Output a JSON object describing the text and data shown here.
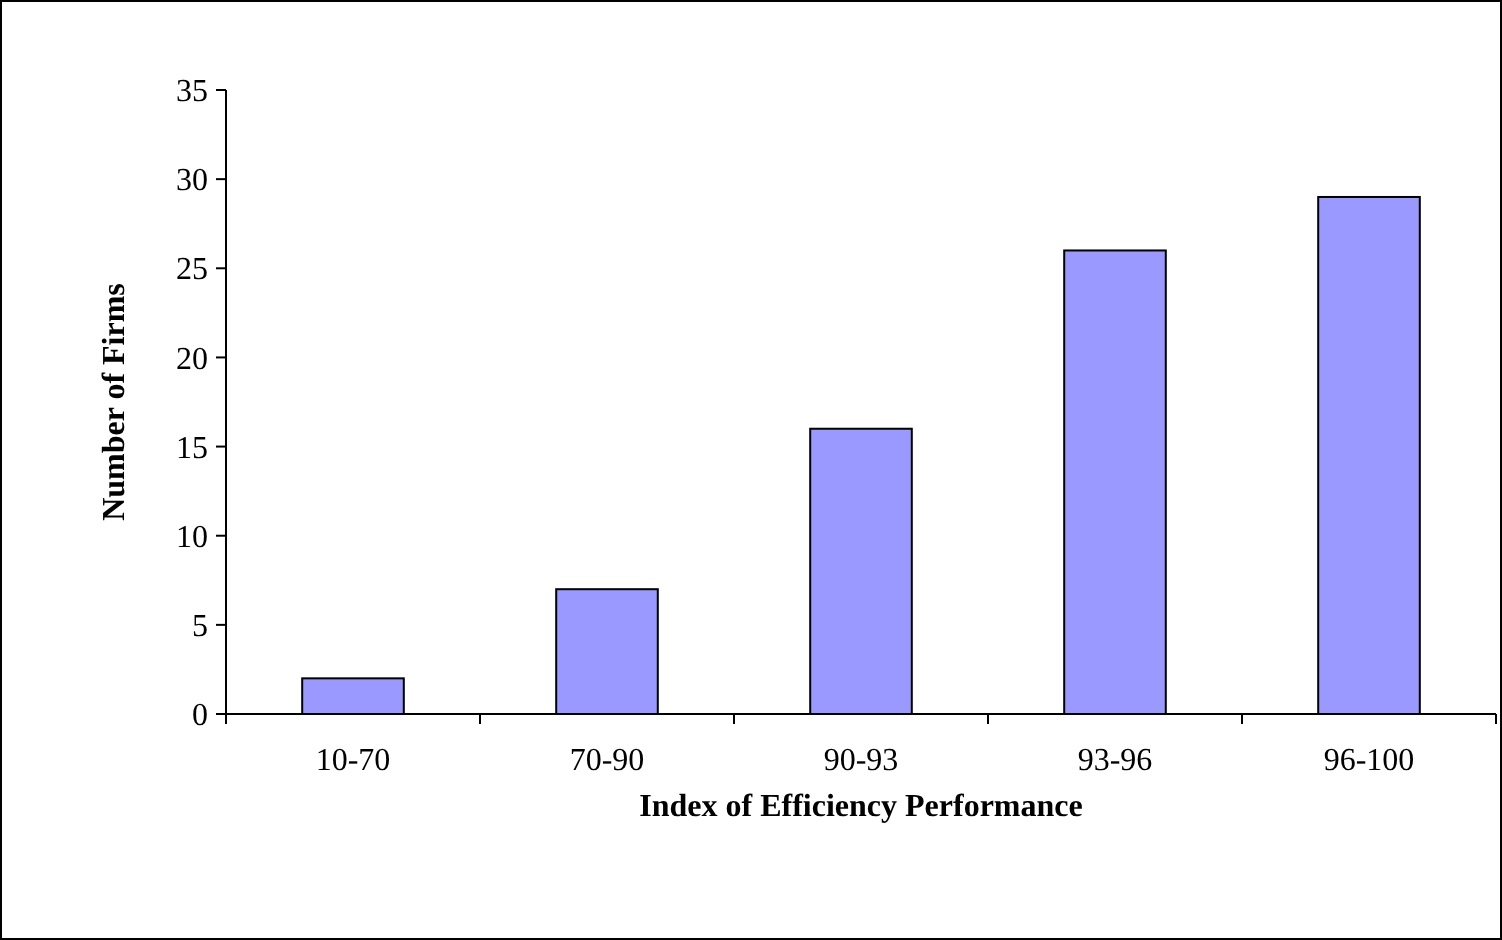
{
  "chart_data": {
    "type": "bar",
    "xlabel": "Index of Efficiency Performance",
    "ylabel": "Number of Firms",
    "categories": [
      "10-70",
      "70-90",
      "90-93",
      "93-96",
      "96-100"
    ],
    "values": [
      2,
      7,
      16,
      26,
      29
    ],
    "color": "#9999ff",
    "ylim": [
      0,
      35
    ],
    "yticks": [
      0,
      5,
      10,
      15,
      20,
      25,
      30,
      35
    ]
  }
}
